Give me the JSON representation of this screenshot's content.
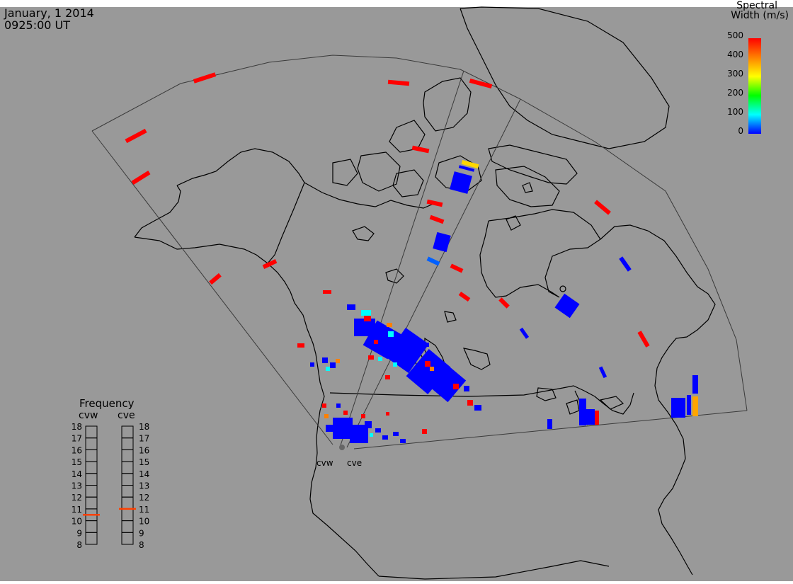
{
  "header": {
    "date": "January, 1 2014",
    "time": "0925:00 UT"
  },
  "colorbar": {
    "title_line1": "Spectral",
    "title_line2": "Width (m/s)",
    "ticks": [
      "500",
      "400",
      "300",
      "200",
      "100",
      "0"
    ],
    "min": 0,
    "max": 500
  },
  "frequency_panel": {
    "title": "Frequency",
    "radars": [
      {
        "name": "cvw",
        "value": 10.5
      },
      {
        "name": "cve",
        "value": 11.0
      }
    ],
    "scale": [
      "18",
      "17",
      "16",
      "15",
      "14",
      "13",
      "12",
      "11",
      "10",
      "9",
      "8"
    ]
  },
  "site_labels": [
    "cvw",
    "cve"
  ],
  "colors": {
    "background": "#999999",
    "coastline": "#000000",
    "fov_outline": "#3a3a3a",
    "frequency_marker": "#ff4000",
    "scale_low": "#0000ff",
    "scale_high": "#ff0000"
  }
}
